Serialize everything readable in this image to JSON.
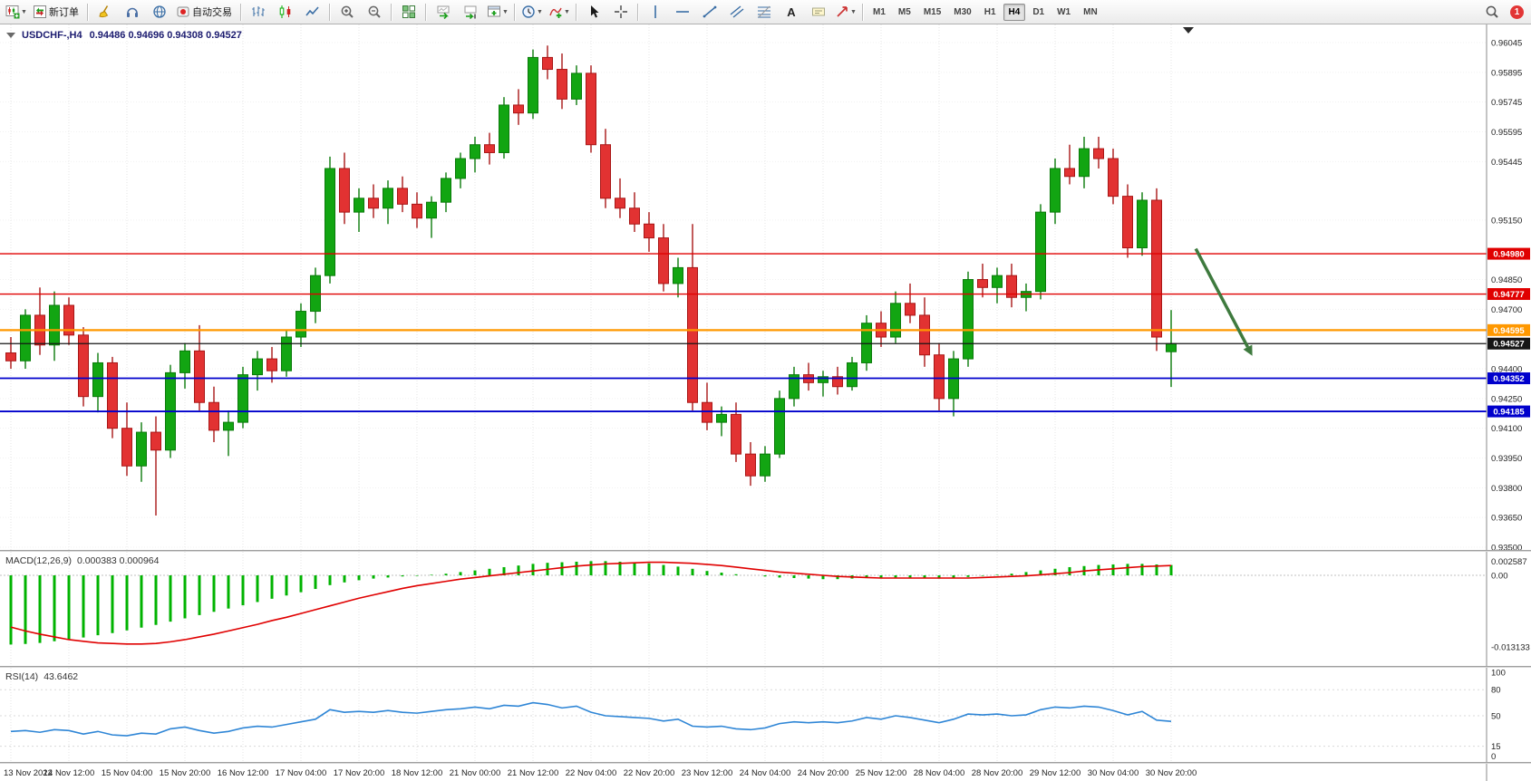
{
  "window": {
    "notification_badge": "1"
  },
  "toolbar": {
    "groups": [
      {
        "name": "file",
        "items": [
          {
            "name": "new-chart-button",
            "icon": "chart-candles",
            "dd": true
          },
          {
            "name": "new-order-button",
            "icon": "order",
            "label": "新订单"
          }
        ]
      },
      {
        "name": "services",
        "items": [
          {
            "name": "broom-button",
            "icon": "broom"
          },
          {
            "name": "headset-button",
            "icon": "headset"
          },
          {
            "name": "community-button",
            "icon": "globe"
          },
          {
            "name": "auto-trading-button",
            "icon": "autotrade",
            "label": "自动交易"
          }
        ]
      },
      {
        "name": "chart-type",
        "items": [
          {
            "name": "bar-chart-button",
            "icon": "bars"
          },
          {
            "name": "candle-chart-button",
            "icon": "candles"
          },
          {
            "name": "line-chart-button",
            "icon": "line"
          }
        ]
      },
      {
        "name": "zoom",
        "items": [
          {
            "name": "zoom-in-button",
            "icon": "zoom-in"
          },
          {
            "name": "zoom-out-button",
            "icon": "zoom-out"
          }
        ]
      },
      {
        "name": "windows",
        "items": [
          {
            "name": "tile-windows-button",
            "icon": "tiles"
          }
        ]
      },
      {
        "name": "scrolling",
        "items": [
          {
            "name": "auto-scroll-button",
            "icon": "chart-arrow"
          },
          {
            "name": "chart-shift-button",
            "icon": "chart-shift"
          },
          {
            "name": "new-window-button",
            "icon": "window-plus",
            "dd": true
          }
        ]
      },
      {
        "name": "insert",
        "items": [
          {
            "name": "period-dropdown-button",
            "icon": "clock",
            "dd": true
          },
          {
            "name": "indicators-button",
            "icon": "indicator-plus",
            "dd": true
          }
        ]
      },
      {
        "name": "pointer",
        "items": [
          {
            "name": "cursor-button",
            "icon": "cursor"
          },
          {
            "name": "crosshair-button",
            "icon": "crosshair"
          }
        ]
      },
      {
        "name": "objects",
        "items": [
          {
            "name": "vertical-line-button",
            "icon": "vline"
          },
          {
            "name": "horizontal-line-button",
            "icon": "hline"
          },
          {
            "name": "trendline-button",
            "icon": "trend"
          },
          {
            "name": "channel-button",
            "icon": "channel"
          },
          {
            "name": "fibonacci-button",
            "icon": "fibo"
          },
          {
            "name": "text-button",
            "icon": "text-a"
          },
          {
            "name": "text-label-button",
            "icon": "label"
          },
          {
            "name": "arrows-button",
            "icon": "arrow-obj",
            "dd": true
          }
        ]
      }
    ],
    "timeframes": [
      {
        "label": "M1"
      },
      {
        "label": "M5"
      },
      {
        "label": "M15"
      },
      {
        "label": "M30"
      },
      {
        "label": "H1"
      },
      {
        "label": "H4",
        "active": true
      },
      {
        "label": "D1"
      },
      {
        "label": "W1"
      },
      {
        "label": "MN"
      }
    ],
    "badge": "1"
  },
  "chart_data": {
    "type": "candlestick",
    "symbol_period": "USDCHF-,H4",
    "ohlc_text": "0.94486 0.94696 0.94308 0.94527",
    "price_max": 0.96045,
    "price_min": 0.935,
    "up_color": "#12a512",
    "up_stroke": "#0a7a0a",
    "down_color": "#e23232",
    "down_stroke": "#a81616",
    "axis_prices": [
      "0.96045",
      "0.95895",
      "0.95745",
      "0.95595",
      "0.95445",
      "0.95150",
      "0.94850",
      "0.94700",
      "0.94400",
      "0.94250",
      "0.94100",
      "0.93950",
      "0.93800",
      "0.93650",
      "0.93500"
    ],
    "hlines": [
      {
        "value": 0.9498,
        "label": "0.94980",
        "color": "#e00000",
        "width": 1.4
      },
      {
        "value": 0.94777,
        "label": "0.94777",
        "color": "#e00000",
        "width": 1.4
      },
      {
        "value": 0.94595,
        "label": "0.94595",
        "color": "#ff9800",
        "width": 2.2
      },
      {
        "value": 0.94527,
        "label": "0.94527",
        "color": "#151515",
        "width": 1.2
      },
      {
        "value": 0.94352,
        "label": "0.94352",
        "color": "#0000cc",
        "width": 1.8
      },
      {
        "value": 0.94185,
        "label": "0.94185",
        "color": "#0000cc",
        "width": 1.8
      }
    ],
    "arrow": {
      "bar1": 81.7,
      "price1": 0.95005,
      "bar2": 85.6,
      "price2": 0.94465,
      "color": "#3e7a3e"
    },
    "candles": [
      [
        0.9448,
        0.9456,
        0.944,
        0.9444
      ],
      [
        0.9444,
        0.947,
        0.944,
        0.9467
      ],
      [
        0.9467,
        0.9481,
        0.9447,
        0.9452
      ],
      [
        0.9452,
        0.9479,
        0.9444,
        0.9472
      ],
      [
        0.9472,
        0.9476,
        0.9452,
        0.9457
      ],
      [
        0.9457,
        0.9461,
        0.9421,
        0.9426
      ],
      [
        0.9426,
        0.9448,
        0.9418,
        0.9443
      ],
      [
        0.9443,
        0.9446,
        0.9405,
        0.941
      ],
      [
        0.941,
        0.9423,
        0.9386,
        0.9391
      ],
      [
        0.9391,
        0.9413,
        0.9383,
        0.9408
      ],
      [
        0.9408,
        0.9416,
        0.9366,
        0.9399
      ],
      [
        0.9399,
        0.9442,
        0.9395,
        0.9438
      ],
      [
        0.9438,
        0.9453,
        0.943,
        0.9449
      ],
      [
        0.9449,
        0.9462,
        0.9419,
        0.9423
      ],
      [
        0.9423,
        0.9431,
        0.9403,
        0.9409
      ],
      [
        0.9409,
        0.9419,
        0.9396,
        0.9413
      ],
      [
        0.9413,
        0.9441,
        0.941,
        0.9437
      ],
      [
        0.9437,
        0.9449,
        0.9429,
        0.9445
      ],
      [
        0.9445,
        0.9451,
        0.9433,
        0.9439
      ],
      [
        0.9439,
        0.9459,
        0.9436,
        0.9456
      ],
      [
        0.9456,
        0.9473,
        0.9451,
        0.9469
      ],
      [
        0.9469,
        0.9491,
        0.9463,
        0.9487
      ],
      [
        0.9487,
        0.9547,
        0.9483,
        0.9541
      ],
      [
        0.9541,
        0.9549,
        0.9513,
        0.9519
      ],
      [
        0.9519,
        0.9531,
        0.9509,
        0.9526
      ],
      [
        0.9526,
        0.9533,
        0.9516,
        0.9521
      ],
      [
        0.9521,
        0.9535,
        0.9513,
        0.9531
      ],
      [
        0.9531,
        0.9537,
        0.9519,
        0.9523
      ],
      [
        0.9523,
        0.9529,
        0.9511,
        0.9516
      ],
      [
        0.9516,
        0.9527,
        0.9506,
        0.9524
      ],
      [
        0.9524,
        0.9539,
        0.9519,
        0.9536
      ],
      [
        0.9536,
        0.9549,
        0.9531,
        0.9546
      ],
      [
        0.9546,
        0.9557,
        0.9539,
        0.9553
      ],
      [
        0.9553,
        0.9559,
        0.9543,
        0.9549
      ],
      [
        0.9549,
        0.9577,
        0.9546,
        0.9573
      ],
      [
        0.9573,
        0.9581,
        0.9563,
        0.9569
      ],
      [
        0.9569,
        0.9601,
        0.9566,
        0.9597
      ],
      [
        0.9597,
        0.9603,
        0.9586,
        0.9591
      ],
      [
        0.9591,
        0.9599,
        0.9571,
        0.9576
      ],
      [
        0.9576,
        0.9593,
        0.9573,
        0.9589
      ],
      [
        0.9589,
        0.9593,
        0.9549,
        0.9553
      ],
      [
        0.9553,
        0.9561,
        0.9521,
        0.9526
      ],
      [
        0.9526,
        0.9536,
        0.9516,
        0.9521
      ],
      [
        0.9521,
        0.9529,
        0.9509,
        0.9513
      ],
      [
        0.9513,
        0.9519,
        0.9499,
        0.9506
      ],
      [
        0.9506,
        0.9513,
        0.9479,
        0.9483
      ],
      [
        0.9483,
        0.9496,
        0.9476,
        0.9491
      ],
      [
        0.9491,
        0.9513,
        0.9419,
        0.9423
      ],
      [
        0.9423,
        0.9433,
        0.9409,
        0.9413
      ],
      [
        0.9413,
        0.9421,
        0.9406,
        0.9417
      ],
      [
        0.9417,
        0.9423,
        0.9393,
        0.9397
      ],
      [
        0.9397,
        0.9403,
        0.9381,
        0.9386
      ],
      [
        0.9386,
        0.9401,
        0.9383,
        0.9397
      ],
      [
        0.9397,
        0.9429,
        0.9395,
        0.9425
      ],
      [
        0.9425,
        0.9441,
        0.9421,
        0.9437
      ],
      [
        0.9437,
        0.9443,
        0.9429,
        0.9433
      ],
      [
        0.9433,
        0.9439,
        0.9426,
        0.9436
      ],
      [
        0.9436,
        0.9441,
        0.9427,
        0.9431
      ],
      [
        0.9431,
        0.9446,
        0.9429,
        0.9443
      ],
      [
        0.9443,
        0.9467,
        0.9439,
        0.9463
      ],
      [
        0.9463,
        0.9469,
        0.9451,
        0.9456
      ],
      [
        0.9456,
        0.9479,
        0.9453,
        0.9473
      ],
      [
        0.9473,
        0.9483,
        0.9463,
        0.9467
      ],
      [
        0.9467,
        0.9476,
        0.9441,
        0.9447
      ],
      [
        0.9447,
        0.9453,
        0.9419,
        0.9425
      ],
      [
        0.9425,
        0.9449,
        0.9416,
        0.9445
      ],
      [
        0.9445,
        0.9489,
        0.9441,
        0.9485
      ],
      [
        0.9485,
        0.9493,
        0.9476,
        0.9481
      ],
      [
        0.9481,
        0.9491,
        0.9473,
        0.9487
      ],
      [
        0.9487,
        0.9493,
        0.9471,
        0.9476
      ],
      [
        0.9476,
        0.9483,
        0.9469,
        0.9479
      ],
      [
        0.9479,
        0.9523,
        0.9475,
        0.9519
      ],
      [
        0.9519,
        0.9546,
        0.9513,
        0.9541
      ],
      [
        0.9541,
        0.9553,
        0.9533,
        0.9537
      ],
      [
        0.9537,
        0.9557,
        0.9531,
        0.9551
      ],
      [
        0.9551,
        0.9557,
        0.9541,
        0.9546
      ],
      [
        0.9546,
        0.9551,
        0.9523,
        0.9527
      ],
      [
        0.9527,
        0.9533,
        0.9496,
        0.9501
      ],
      [
        0.9501,
        0.9529,
        0.9497,
        0.9525
      ],
      [
        0.9525,
        0.9531,
        0.9449,
        0.9456
      ],
      [
        0.94486,
        0.94696,
        0.94308,
        0.94527
      ]
    ]
  },
  "macd": {
    "label": "MACD(12,26,9)",
    "values": "0.000383 0.000964",
    "bar_color": "#00b300",
    "signal_color": "#e00000",
    "axis": [
      {
        "label": "0.002587",
        "value": 0.002587
      },
      {
        "label": "0.00",
        "value": 0
      },
      {
        "label": "-0.013133",
        "value": -0.013133
      }
    ],
    "hist": [
      -0.0127,
      -0.0126,
      -0.0124,
      -0.0121,
      -0.0118,
      -0.0114,
      -0.011,
      -0.0106,
      -0.0101,
      -0.0096,
      -0.0091,
      -0.0085,
      -0.0079,
      -0.0073,
      -0.0067,
      -0.0061,
      -0.0055,
      -0.0049,
      -0.0043,
      -0.0037,
      -0.0031,
      -0.0025,
      -0.0018,
      -0.0013,
      -0.0009,
      -0.0006,
      -0.0004,
      -0.0002,
      -0.0001,
      0.0001,
      0.0003,
      0.0006,
      0.0009,
      0.0012,
      0.0015,
      0.0018,
      0.0021,
      0.0023,
      0.0024,
      0.0025,
      0.0026,
      0.0026,
      0.0025,
      0.0024,
      0.0022,
      0.0019,
      0.0016,
      0.0012,
      0.0008,
      0.0005,
      0.0002,
      0.0,
      -0.0002,
      -0.0004,
      -0.0005,
      -0.0006,
      -0.0007,
      -0.0007,
      -0.0006,
      -0.0005,
      -0.0005,
      -0.0004,
      -0.0004,
      -0.0005,
      -0.0006,
      -0.0005,
      -0.0003,
      -0.0001,
      0.0001,
      0.0003,
      0.0006,
      0.0009,
      0.0012,
      0.0015,
      0.0017,
      0.0019,
      0.002,
      0.0021,
      0.0021,
      0.002,
      0.0019
    ],
    "signal": [
      -0.0095,
      -0.0102,
      -0.0108,
      -0.0113,
      -0.0118,
      -0.0121,
      -0.0124,
      -0.0125,
      -0.0126,
      -0.0126,
      -0.0125,
      -0.0122,
      -0.0118,
      -0.0113,
      -0.0108,
      -0.0102,
      -0.0096,
      -0.009,
      -0.0083,
      -0.0077,
      -0.007,
      -0.0063,
      -0.0056,
      -0.0049,
      -0.0042,
      -0.0036,
      -0.003,
      -0.0024,
      -0.0019,
      -0.0015,
      -0.0011,
      -0.0007,
      -0.0004,
      -0.0001,
      0.0002,
      0.0005,
      0.0008,
      0.0011,
      0.0014,
      0.0017,
      0.0019,
      0.0021,
      0.0022,
      0.0023,
      0.0024,
      0.0024,
      0.0023,
      0.0022,
      0.002,
      0.0018,
      0.0015,
      0.0012,
      0.0009,
      0.0006,
      0.0004,
      0.0002,
      0.0,
      -0.0002,
      -0.0003,
      -0.0004,
      -0.0005,
      -0.0005,
      -0.0005,
      -0.0005,
      -0.0005,
      -0.0005,
      -0.0005,
      -0.0004,
      -0.0003,
      -0.0002,
      -0.0001,
      0.0001,
      0.0003,
      0.0005,
      0.0008,
      0.001,
      0.0012,
      0.0014,
      0.0016,
      0.0017,
      0.0018
    ]
  },
  "rsi": {
    "label": "RSI(14)",
    "value": "43.6462",
    "line_color": "#2f86d6",
    "axis": [
      {
        "label": "100",
        "value": 100
      },
      {
        "label": "80",
        "value": 80,
        "level": true
      },
      {
        "label": "50",
        "value": 50,
        "level": true
      },
      {
        "label": "15",
        "value": 15,
        "level": true
      },
      {
        "label": "0",
        "value": 0
      }
    ],
    "points": [
      32,
      33,
      31,
      34,
      33,
      29,
      32,
      28,
      27,
      30,
      29,
      35,
      37,
      33,
      30,
      32,
      36,
      38,
      37,
      40,
      43,
      46,
      57,
      54,
      55,
      54,
      56,
      54,
      53,
      55,
      57,
      58,
      60,
      58,
      62,
      61,
      65,
      63,
      59,
      61,
      54,
      50,
      49,
      48,
      47,
      44,
      46,
      38,
      37,
      38,
      35,
      34,
      36,
      41,
      43,
      42,
      43,
      42,
      44,
      48,
      46,
      50,
      48,
      45,
      42,
      46,
      52,
      51,
      52,
      50,
      51,
      57,
      60,
      59,
      61,
      60,
      56,
      51,
      55,
      45,
      43.6
    ]
  },
  "time_axis": {
    "labels": [
      "13 Nov 2022",
      "14 Nov 12:00",
      "15 Nov 04:00",
      "15 Nov 20:00",
      "16 Nov 12:00",
      "17 Nov 04:00",
      "17 Nov 20:00",
      "18 Nov 12:00",
      "21 Nov 00:00",
      "21 Nov 12:00",
      "22 Nov 04:00",
      "22 Nov 20:00",
      "23 Nov 12:00",
      "24 Nov 04:00",
      "24 Nov 20:00",
      "25 Nov 12:00",
      "28 Nov 04:00",
      "28 Nov 20:00",
      "29 Nov 12:00",
      "30 Nov 04:00",
      "30 Nov 20:00"
    ]
  }
}
